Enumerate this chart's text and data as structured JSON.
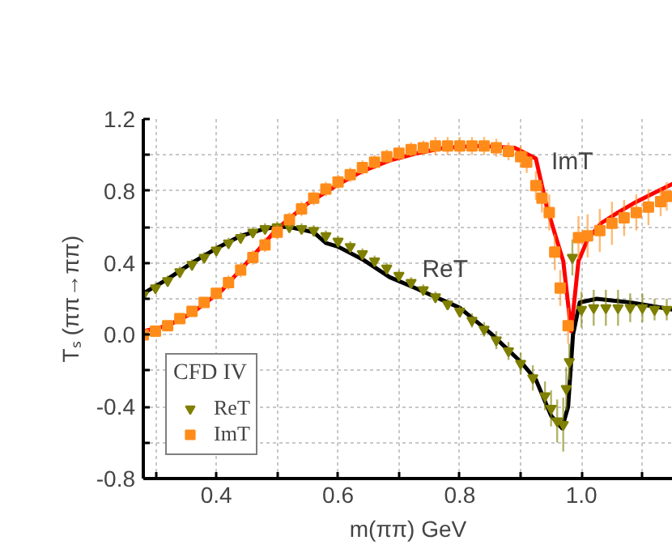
{
  "chart_data": {
    "type": "scatter",
    "xlabel": "m(ππ) GeV",
    "ylabel": "Tₛ (ππ→ππ)",
    "legend_title": "CFD IV",
    "xlim": [
      0.28,
      1.15
    ],
    "ylim": [
      -0.8,
      1.2
    ],
    "xticks": [
      {
        "value": 0.3,
        "label": null
      },
      0.4,
      {
        "value": 0.5,
        "label": null
      },
      0.6,
      {
        "value": 0.7,
        "label": null
      },
      0.8,
      {
        "value": 0.9,
        "label": null
      },
      {
        "value": 1.0,
        "label": "1.0"
      },
      {
        "value": 1.1,
        "label": null
      }
    ],
    "yticks": [
      -0.8,
      {
        "value": -0.6,
        "label": null
      },
      -0.4,
      {
        "value": -0.2,
        "label": null
      },
      {
        "value": 0.0,
        "label": "0.0"
      },
      {
        "value": 0.2,
        "label": null
      },
      0.4,
      {
        "value": 0.6,
        "label": null
      },
      0.8,
      {
        "value": 1.0,
        "label": null
      },
      1.2
    ],
    "grid": true,
    "legend": "bottom left",
    "series": [
      {
        "name": "ReT",
        "marker": "triangle",
        "color": "#7f7f00",
        "x": [
          0.28,
          0.3,
          0.32,
          0.34,
          0.36,
          0.38,
          0.4,
          0.42,
          0.44,
          0.46,
          0.48,
          0.5,
          0.52,
          0.54,
          0.56,
          0.58,
          0.6,
          0.62,
          0.64,
          0.66,
          0.68,
          0.7,
          0.72,
          0.74,
          0.76,
          0.78,
          0.8,
          0.82,
          0.84,
          0.86,
          0.88,
          0.9,
          0.92,
          0.94,
          0.95,
          0.96,
          0.97,
          0.975,
          0.98,
          0.985,
          1.0,
          1.02,
          1.04,
          1.06,
          1.08,
          1.1,
          1.12,
          1.14
        ],
        "values": [
          0.22,
          0.26,
          0.3,
          0.35,
          0.39,
          0.43,
          0.47,
          0.51,
          0.54,
          0.57,
          0.59,
          0.6,
          0.6,
          0.59,
          0.58,
          0.55,
          0.52,
          0.49,
          0.45,
          0.41,
          0.37,
          0.33,
          0.29,
          0.25,
          0.21,
          0.17,
          0.13,
          0.08,
          0.03,
          -0.03,
          -0.09,
          -0.16,
          -0.24,
          -0.34,
          -0.41,
          -0.48,
          -0.5,
          -0.3,
          -0.15,
          0.43,
          0.14,
          0.15,
          0.15,
          0.15,
          0.15,
          0.15,
          0.14,
          0.14
        ],
        "errors": [
          0.03,
          0.03,
          0.03,
          0.03,
          0.03,
          0.03,
          0.03,
          0.03,
          0.03,
          0.03,
          0.03,
          0.03,
          0.03,
          0.03,
          0.03,
          0.03,
          0.03,
          0.03,
          0.03,
          0.03,
          0.03,
          0.03,
          0.03,
          0.03,
          0.03,
          0.03,
          0.03,
          0.04,
          0.04,
          0.05,
          0.05,
          0.06,
          0.07,
          0.08,
          0.1,
          0.12,
          0.15,
          0.12,
          0.1,
          0.1,
          0.1,
          0.1,
          0.1,
          0.1,
          0.08,
          0.08,
          0.06,
          0.06
        ]
      },
      {
        "name": "ImT",
        "marker": "square",
        "color": "#ff8c1a",
        "x": [
          0.28,
          0.3,
          0.32,
          0.34,
          0.36,
          0.38,
          0.4,
          0.42,
          0.44,
          0.46,
          0.48,
          0.5,
          0.52,
          0.54,
          0.56,
          0.58,
          0.6,
          0.62,
          0.64,
          0.66,
          0.68,
          0.7,
          0.72,
          0.74,
          0.76,
          0.78,
          0.8,
          0.82,
          0.84,
          0.86,
          0.88,
          0.9,
          0.91,
          0.925,
          0.935,
          0.947,
          0.956,
          0.965,
          0.978,
          0.995,
          1.01,
          1.03,
          1.05,
          1.07,
          1.09,
          1.11,
          1.13,
          1.14
        ],
        "values": [
          0.0,
          0.02,
          0.05,
          0.09,
          0.13,
          0.18,
          0.23,
          0.29,
          0.36,
          0.43,
          0.5,
          0.57,
          0.64,
          0.7,
          0.76,
          0.81,
          0.85,
          0.89,
          0.93,
          0.96,
          0.99,
          1.01,
          1.03,
          1.04,
          1.05,
          1.05,
          1.05,
          1.05,
          1.05,
          1.04,
          1.02,
          0.99,
          0.96,
          0.83,
          0.76,
          0.68,
          0.46,
          0.26,
          0.05,
          0.54,
          0.55,
          0.58,
          0.62,
          0.65,
          0.68,
          0.71,
          0.74,
          0.77
        ],
        "errors": [
          0.02,
          0.02,
          0.02,
          0.03,
          0.03,
          0.03,
          0.03,
          0.04,
          0.04,
          0.04,
          0.04,
          0.04,
          0.04,
          0.04,
          0.04,
          0.04,
          0.04,
          0.04,
          0.04,
          0.04,
          0.04,
          0.04,
          0.04,
          0.04,
          0.05,
          0.05,
          0.05,
          0.05,
          0.05,
          0.05,
          0.05,
          0.06,
          0.06,
          0.08,
          0.08,
          0.1,
          0.1,
          0.1,
          0.1,
          0.12,
          0.12,
          0.12,
          0.12,
          0.1,
          0.1,
          0.1,
          0.08,
          0.08
        ]
      },
      {
        "type": "line",
        "color": "#000000",
        "x": [
          0.28,
          0.32,
          0.36,
          0.4,
          0.44,
          0.48,
          0.5,
          0.52,
          0.56,
          0.58,
          0.6,
          0.64,
          0.685,
          0.72,
          0.76,
          0.8,
          0.85,
          0.9,
          0.925,
          0.95,
          0.968,
          0.978,
          0.986,
          0.997,
          1.025,
          1.08,
          1.15
        ],
        "values": [
          0.23,
          0.31,
          0.4,
          0.48,
          0.55,
          0.59,
          0.6,
          0.6,
          0.57,
          0.51,
          0.49,
          0.42,
          0.32,
          0.27,
          0.21,
          0.15,
          0.01,
          -0.15,
          -0.25,
          -0.45,
          -0.52,
          -0.4,
          0.0,
          0.18,
          0.2,
          0.18,
          0.14
        ]
      },
      {
        "type": "line",
        "color": "#ff0000",
        "x": [
          0.28,
          0.32,
          0.36,
          0.41,
          0.45,
          0.5,
          0.55,
          0.597,
          0.64,
          0.685,
          0.73,
          0.775,
          0.83,
          0.89,
          0.925,
          0.943,
          0.96,
          0.97,
          0.983,
          0.995,
          1.01,
          1.032,
          1.06,
          1.085,
          1.12,
          1.15
        ],
        "values": [
          0.02,
          0.05,
          0.12,
          0.25,
          0.4,
          0.59,
          0.73,
          0.83,
          0.91,
          0.97,
          1.01,
          1.04,
          1.05,
          1.04,
          0.98,
          0.71,
          0.52,
          0.41,
          0.02,
          0.41,
          0.53,
          0.62,
          0.68,
          0.73,
          0.79,
          0.84
        ]
      }
    ],
    "annotations": [
      "ImT",
      "ReT"
    ]
  }
}
